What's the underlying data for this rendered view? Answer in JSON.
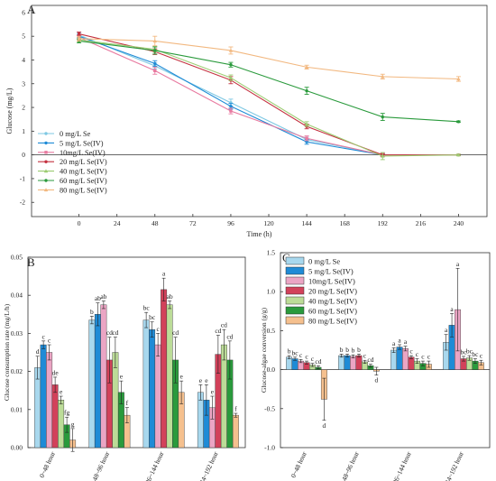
{
  "chart_data": [
    {
      "panel": "A",
      "type": "line",
      "xlabel": "Time (h)",
      "ylabel": "Glucose (mg/L)",
      "xlim": [
        -30,
        258
      ],
      "ylim": [
        -2.6,
        6.3
      ],
      "xticks": [
        0,
        24,
        48,
        72,
        96,
        120,
        144,
        168,
        192,
        216,
        240
      ],
      "yticks": [
        -2,
        -1,
        0,
        1,
        2,
        3,
        4,
        5,
        6
      ],
      "legend_position": "lower-left",
      "series": [
        {
          "name": "0 mg/L Se",
          "color": "#7ec8e3",
          "marker": "circle",
          "x": [
            0,
            48,
            96,
            144,
            192
          ],
          "y": [
            5.05,
            3.75,
            2.2,
            0.65,
            0.0
          ],
          "err": [
            0.1,
            0.12,
            0.15,
            0.1,
            0.05
          ]
        },
        {
          "name": "5 mg/L Se(IV)",
          "color": "#1f8bd6",
          "marker": "circle",
          "x": [
            0,
            48,
            96,
            144,
            192
          ],
          "y": [
            5.0,
            3.85,
            2.05,
            0.55,
            0.0
          ],
          "err": [
            0.08,
            0.12,
            0.12,
            0.1,
            0.05
          ]
        },
        {
          "name": "10mg/L Se(IV)",
          "color": "#e87aa0",
          "marker": "square",
          "x": [
            0,
            48,
            96,
            144,
            192
          ],
          "y": [
            4.95,
            3.55,
            1.85,
            0.7,
            0.0
          ],
          "err": [
            0.1,
            0.15,
            0.12,
            0.1,
            0.08
          ]
        },
        {
          "name": "20 mg/L Se(IV)",
          "color": "#c4303f",
          "marker": "circle",
          "x": [
            0,
            48,
            96,
            144,
            192,
            240
          ],
          "y": [
            5.1,
            4.35,
            3.15,
            1.2,
            0.0,
            0.0
          ],
          "err": [
            0.08,
            0.12,
            0.15,
            0.1,
            0.05,
            0.03
          ]
        },
        {
          "name": "40 mg/L Se(IV)",
          "color": "#9ccc72",
          "marker": "triangle",
          "x": [
            0,
            48,
            96,
            144,
            192,
            240
          ],
          "y": [
            4.85,
            4.45,
            3.25,
            1.3,
            -0.05,
            0.0
          ],
          "err": [
            0.08,
            0.12,
            0.12,
            0.1,
            0.15,
            0.03
          ]
        },
        {
          "name": "60 mg/L Se(IV)",
          "color": "#2a9a3c",
          "marker": "circle",
          "x": [
            0,
            48,
            96,
            144,
            192,
            240
          ],
          "y": [
            4.8,
            4.4,
            3.8,
            2.7,
            1.6,
            1.4
          ],
          "err": [
            0.08,
            0.15,
            0.1,
            0.15,
            0.15,
            0.03
          ]
        },
        {
          "name": "80 mg/L Se(IV)",
          "color": "#f2b880",
          "marker": "triangle",
          "x": [
            0,
            48,
            96,
            144,
            192,
            240
          ],
          "y": [
            4.9,
            4.8,
            4.4,
            3.7,
            3.3,
            3.2
          ],
          "err": [
            0.1,
            0.2,
            0.15,
            0.08,
            0.1,
            0.1
          ]
        }
      ]
    },
    {
      "panel": "B",
      "type": "bar",
      "ylabel": "Glucose consumption rate (mg/L/h)",
      "ylim": [
        0,
        0.05
      ],
      "yticks": [
        0,
        0.01,
        0.02,
        0.03,
        0.04,
        0.05
      ],
      "ytick_labels": [
        "0.00",
        "0.01",
        "0.02",
        "0.03",
        "0.04",
        "0.05"
      ],
      "categories": [
        "0~48 hour",
        "48~96 hour",
        "96~144 hour",
        "144~192 hour"
      ],
      "series": [
        {
          "name": "0 mg/L Se",
          "color": "#a8d8ee",
          "values": [
            0.021,
            0.0335,
            0.0335,
            0.0145
          ],
          "err": [
            0.003,
            0.001,
            0.002,
            0.002
          ],
          "labels": [
            "d",
            "b",
            "bc",
            "e"
          ]
        },
        {
          "name": "5 mg/L Se(IV)",
          "color": "#1f8bd6",
          "values": [
            0.027,
            0.035,
            0.031,
            0.0125
          ],
          "err": [
            0.001,
            0.003,
            0.002,
            0.004
          ],
          "labels": [
            "c",
            "ab",
            "bc",
            "e"
          ]
        },
        {
          "name": "10mg/L Se(IV)",
          "color": "#eba5c4",
          "values": [
            0.025,
            0.0375,
            0.027,
            0.0105
          ],
          "err": [
            0.002,
            0.001,
            0.003,
            0.003
          ],
          "labels": [
            "c",
            "ab",
            "c",
            "e"
          ]
        },
        {
          "name": "20 mg/L Se(IV)",
          "color": "#d2415a",
          "values": [
            0.0165,
            0.023,
            0.0415,
            0.0245
          ],
          "err": [
            0.002,
            0.006,
            0.003,
            0.005
          ],
          "labels": [
            "de",
            "cd",
            "a",
            "cd"
          ]
        },
        {
          "name": "40 mg/L Se(IV)",
          "color": "#bcdc98",
          "values": [
            0.0125,
            0.025,
            0.0375,
            0.027
          ],
          "err": [
            0.001,
            0.004,
            0.001,
            0.004
          ],
          "labels": [
            "e",
            "cd",
            "ab",
            "cd"
          ]
        },
        {
          "name": "60 mg/L Se(IV)",
          "color": "#2a9a3c",
          "values": [
            0.006,
            0.0145,
            0.023,
            0.023
          ],
          "err": [
            0.002,
            0.003,
            0.006,
            0.005
          ],
          "labels": [
            "fg",
            "e",
            "cd",
            "cd"
          ]
        },
        {
          "name": "80 mg/L Se(IV)",
          "color": "#f5c08e",
          "values": [
            0.002,
            0.0085,
            0.0145,
            0.0085
          ],
          "err": [
            0.003,
            0.002,
            0.003,
            0.0005
          ],
          "labels": [
            "g",
            "f",
            "e",
            "f"
          ]
        }
      ]
    },
    {
      "panel": "C",
      "type": "bar",
      "ylabel": "Glucose-algae conversion (g/g)",
      "ylim": [
        -1.0,
        1.5
      ],
      "yticks": [
        -1.0,
        -0.5,
        0.0,
        0.5,
        1.0,
        1.5
      ],
      "ytick_labels": [
        "-1.0",
        "-0.5",
        "0.0",
        "0.5",
        "1.0",
        "1.5"
      ],
      "legend_position": "top-left",
      "categories": [
        "0~48 hour",
        "48~96 hour",
        "96~144 hour",
        "144~192 hour"
      ],
      "series": [
        {
          "name": "0 mg/L Se",
          "color": "#a8d8ee",
          "values": [
            0.16,
            0.18,
            0.25,
            0.35
          ],
          "err": [
            0.02,
            0.02,
            0.03,
            0.1
          ],
          "labels": [
            "b",
            "b",
            "a",
            "a"
          ]
        },
        {
          "name": "5 mg/L Se(IV)",
          "color": "#1f8bd6",
          "values": [
            0.14,
            0.18,
            0.29,
            0.57
          ],
          "err": [
            0.02,
            0.02,
            0.03,
            0.15
          ],
          "labels": [
            "bc",
            "b",
            "a",
            "a"
          ]
        },
        {
          "name": "10mg/L Se(IV)",
          "color": "#eba5c4",
          "values": [
            0.11,
            0.17,
            0.27,
            0.77
          ],
          "err": [
            0.02,
            0.02,
            0.03,
            0.53
          ],
          "labels": [
            "c",
            "b",
            "a",
            "a"
          ]
        },
        {
          "name": "20 mg/L Se(IV)",
          "color": "#d2415a",
          "values": [
            0.09,
            0.18,
            0.16,
            0.14
          ],
          "err": [
            0.02,
            0.02,
            0.02,
            0.03
          ],
          "labels": [
            "c",
            "b",
            "c",
            "bc"
          ]
        },
        {
          "name": "40 mg/L Se(IV)",
          "color": "#bcdc98",
          "values": [
            0.06,
            0.1,
            0.11,
            0.15
          ],
          "err": [
            0.02,
            0.02,
            0.03,
            0.03
          ],
          "labels": [
            "c",
            "c",
            "c",
            "bc"
          ]
        },
        {
          "name": "60 mg/L Se(IV)",
          "color": "#2a9a3c",
          "values": [
            0.03,
            0.05,
            0.08,
            0.11
          ],
          "err": [
            0.02,
            0.02,
            0.03,
            0.03
          ],
          "labels": [
            "cd",
            "cd",
            "c",
            "bc"
          ]
        },
        {
          "name": "80 mg/L Se(IV)",
          "color": "#f5c08e",
          "values": [
            -0.38,
            -0.02,
            0.07,
            0.09
          ],
          "err": [
            0.27,
            0.05,
            0.04,
            0.03
          ],
          "labels": [
            "d",
            "d",
            "c",
            "c"
          ]
        }
      ]
    }
  ]
}
